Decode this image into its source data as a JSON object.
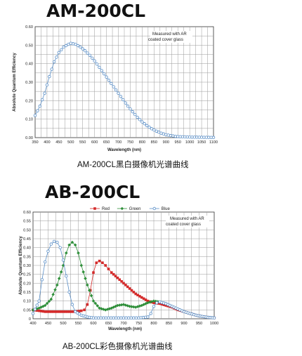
{
  "chart_data": [
    {
      "type": "line",
      "title": "AM-200CL",
      "caption": "AM-200CL黑白摄像机光谱曲线",
      "xlabel": "Wavelength (nm)",
      "ylabel": "Absolute Quantum Efficiency",
      "annotation": [
        "Measured with AR",
        "coated cover glass"
      ],
      "xlim": [
        350,
        1100
      ],
      "ylim": [
        0,
        0.6
      ],
      "xticks": [
        "350",
        "400",
        "450",
        "500",
        "550",
        "600",
        "650",
        "700",
        "750",
        "800",
        "850",
        "900",
        "950",
        "1000",
        "1050",
        "1100"
      ],
      "yticks": [
        "0.00",
        "0.10",
        "0.20",
        "0.30",
        "0.40",
        "0.50",
        "0.60"
      ],
      "grid": true,
      "series": [
        {
          "color": "#5b8fc7",
          "marker": "circle-open",
          "points": [
            [
              350,
              0.12
            ],
            [
              370,
              0.17
            ],
            [
              390,
              0.24
            ],
            [
              410,
              0.33
            ],
            [
              430,
              0.41
            ],
            [
              450,
              0.46
            ],
            [
              470,
              0.49
            ],
            [
              490,
              0.505
            ],
            [
              500,
              0.51
            ],
            [
              520,
              0.505
            ],
            [
              540,
              0.49
            ],
            [
              560,
              0.47
            ],
            [
              580,
              0.445
            ],
            [
              600,
              0.415
            ],
            [
              620,
              0.38
            ],
            [
              640,
              0.345
            ],
            [
              660,
              0.31
            ],
            [
              680,
              0.275
            ],
            [
              700,
              0.24
            ],
            [
              720,
              0.205
            ],
            [
              740,
              0.17
            ],
            [
              760,
              0.14
            ],
            [
              780,
              0.11
            ],
            [
              800,
              0.085
            ],
            [
              820,
              0.065
            ],
            [
              840,
              0.048
            ],
            [
              860,
              0.035
            ],
            [
              880,
              0.024
            ],
            [
              900,
              0.016
            ],
            [
              920,
              0.011
            ],
            [
              940,
              0.007
            ],
            [
              960,
              0.005
            ],
            [
              980,
              0.004
            ],
            [
              1000,
              0.003
            ],
            [
              1050,
              0.002
            ],
            [
              1100,
              0.001
            ]
          ]
        }
      ]
    },
    {
      "type": "line",
      "title": "AB-200CL",
      "caption": "AB-200CL彩色摄像机光谱曲线",
      "xlabel": "Wavelength (nm)",
      "ylabel": "Absolute Quantum Efficiency",
      "annotation": [
        "Measured with AR",
        "coated cover glass"
      ],
      "legend_position": "top-center",
      "xlim": [
        400,
        1000
      ],
      "ylim": [
        0,
        0.6
      ],
      "xticks": [
        "400",
        "450",
        "500",
        "550",
        "600",
        "650",
        "700",
        "750",
        "800",
        "850",
        "900",
        "950",
        "1000"
      ],
      "yticks": [
        "0",
        "0.05",
        "0.10",
        "0.15",
        "0.20",
        "0.25",
        "0.30",
        "0.35",
        "0.40",
        "0.45",
        "0.50",
        "0.55",
        "0.60"
      ],
      "grid": true,
      "series": [
        {
          "name": "Red",
          "color": "#d42a2a",
          "marker": "square",
          "points": [
            [
              400,
              0.05
            ],
            [
              420,
              0.045
            ],
            [
              440,
              0.04
            ],
            [
              460,
              0.04
            ],
            [
              480,
              0.04
            ],
            [
              500,
              0.04
            ],
            [
              520,
              0.04
            ],
            [
              540,
              0.04
            ],
            [
              560,
              0.045
            ],
            [
              570,
              0.05
            ],
            [
              580,
              0.08
            ],
            [
              590,
              0.16
            ],
            [
              600,
              0.26
            ],
            [
              610,
              0.315
            ],
            [
              620,
              0.325
            ],
            [
              630,
              0.315
            ],
            [
              640,
              0.3
            ],
            [
              650,
              0.28
            ],
            [
              660,
              0.26
            ],
            [
              680,
              0.23
            ],
            [
              700,
              0.2
            ],
            [
              720,
              0.17
            ],
            [
              740,
              0.14
            ],
            [
              760,
              0.12
            ],
            [
              780,
              0.1
            ],
            [
              800,
              0.09
            ],
            [
              820,
              0.085
            ],
            [
              840,
              0.075
            ],
            [
              860,
              0.065
            ],
            [
              880,
              0.05
            ],
            [
              900,
              0.04
            ],
            [
              920,
              0.03
            ],
            [
              940,
              0.02
            ],
            [
              960,
              0.013
            ],
            [
              980,
              0.008
            ],
            [
              1000,
              0.005
            ]
          ]
        },
        {
          "name": "Green",
          "color": "#2f8f3a",
          "marker": "diamond",
          "points": [
            [
              400,
              0.05
            ],
            [
              420,
              0.06
            ],
            [
              440,
              0.075
            ],
            [
              460,
              0.11
            ],
            [
              480,
              0.19
            ],
            [
              500,
              0.3
            ],
            [
              510,
              0.37
            ],
            [
              520,
              0.415
            ],
            [
              530,
              0.43
            ],
            [
              540,
              0.415
            ],
            [
              550,
              0.37
            ],
            [
              560,
              0.3
            ],
            [
              580,
              0.19
            ],
            [
              600,
              0.1
            ],
            [
              620,
              0.06
            ],
            [
              640,
              0.05
            ],
            [
              660,
              0.06
            ],
            [
              680,
              0.075
            ],
            [
              700,
              0.08
            ],
            [
              720,
              0.07
            ],
            [
              740,
              0.065
            ],
            [
              760,
              0.075
            ],
            [
              780,
              0.09
            ],
            [
              800,
              0.1
            ],
            [
              820,
              0.095
            ],
            [
              840,
              0.085
            ],
            [
              860,
              0.07
            ],
            [
              880,
              0.055
            ],
            [
              900,
              0.04
            ],
            [
              920,
              0.03
            ],
            [
              940,
              0.02
            ],
            [
              960,
              0.013
            ],
            [
              980,
              0.008
            ],
            [
              1000,
              0.005
            ]
          ]
        },
        {
          "name": "Blue",
          "color": "#5b8fc7",
          "marker": "circle-open",
          "points": [
            [
              400,
              0.03
            ],
            [
              420,
              0.1
            ],
            [
              430,
              0.22
            ],
            [
              440,
              0.32
            ],
            [
              450,
              0.38
            ],
            [
              460,
              0.42
            ],
            [
              470,
              0.435
            ],
            [
              480,
              0.43
            ],
            [
              490,
              0.4
            ],
            [
              500,
              0.33
            ],
            [
              510,
              0.24
            ],
            [
              520,
              0.15
            ],
            [
              530,
              0.08
            ],
            [
              540,
              0.04
            ],
            [
              560,
              0.02
            ],
            [
              580,
              0.01
            ],
            [
              600,
              0.005
            ],
            [
              650,
              0.005
            ],
            [
              700,
              0.005
            ],
            [
              750,
              0.005
            ],
            [
              780,
              0.01
            ],
            [
              790,
              0.03
            ],
            [
              800,
              0.07
            ],
            [
              810,
              0.09
            ],
            [
              820,
              0.095
            ],
            [
              840,
              0.085
            ],
            [
              860,
              0.07
            ],
            [
              880,
              0.055
            ],
            [
              900,
              0.04
            ],
            [
              920,
              0.03
            ],
            [
              940,
              0.02
            ],
            [
              960,
              0.013
            ],
            [
              980,
              0.008
            ],
            [
              1000,
              0.005
            ]
          ]
        }
      ]
    }
  ]
}
